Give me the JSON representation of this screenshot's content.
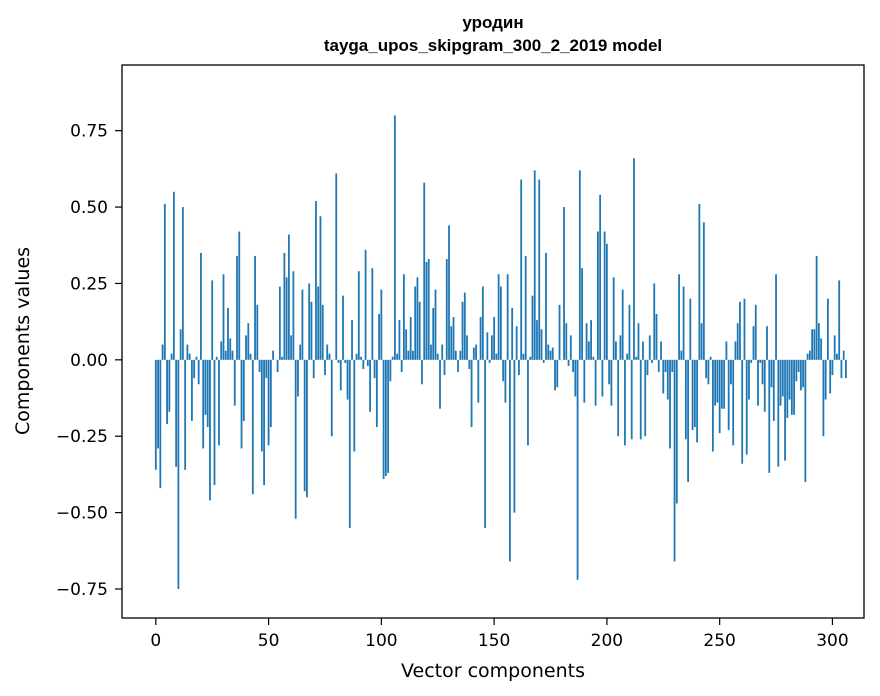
{
  "chart_data": {
    "type": "bar",
    "title": "уродин",
    "subtitle": "tayga_upos_skipgram_300_2_2019 model",
    "xlabel": "Vector components",
    "ylabel": "Components values",
    "xlim": [
      -15,
      314
    ],
    "ylim": [
      -0.845,
      0.965
    ],
    "x_ticks": [
      0,
      50,
      100,
      150,
      200,
      250,
      300
    ],
    "y_ticks": [
      -0.75,
      -0.5,
      -0.25,
      0.0,
      0.25,
      0.5,
      0.75
    ],
    "x_tick_labels": [
      "0",
      "50",
      "100",
      "150",
      "200",
      "250",
      "300"
    ],
    "y_tick_labels": [
      "−0.75",
      "−0.50",
      "−0.25",
      "0.00",
      "0.25",
      "0.50",
      "0.75"
    ],
    "grid": false,
    "bar_color": "#1f77b4",
    "values": [
      -0.36,
      -0.29,
      -0.42,
      0.05,
      0.51,
      -0.21,
      -0.17,
      0.02,
      0.55,
      -0.35,
      -0.75,
      0.1,
      0.5,
      -0.36,
      0.05,
      0.02,
      -0.2,
      -0.06,
      0.01,
      -0.08,
      0.35,
      -0.29,
      -0.18,
      -0.22,
      -0.46,
      0.26,
      -0.41,
      0.01,
      -0.28,
      0.06,
      0.28,
      0.03,
      0.17,
      0.07,
      0.03,
      -0.15,
      0.34,
      0.42,
      -0.29,
      -0.2,
      0.08,
      0.12,
      0.02,
      -0.44,
      0.34,
      0.18,
      -0.04,
      -0.3,
      -0.41,
      -0.06,
      -0.28,
      -0.22,
      0.03,
      0.0,
      -0.04,
      0.24,
      0.01,
      0.35,
      0.27,
      0.41,
      0.08,
      0.29,
      -0.52,
      -0.12,
      0.05,
      0.23,
      -0.43,
      -0.45,
      0.25,
      0.19,
      -0.06,
      0.52,
      0.24,
      0.47,
      0.18,
      -0.05,
      0.05,
      0.02,
      -0.25,
      0.0,
      0.61,
      -0.01,
      -0.1,
      0.21,
      -0.01,
      -0.13,
      -0.55,
      0.13,
      -0.3,
      0.02,
      0.29,
      0.01,
      -0.03,
      0.36,
      -0.02,
      -0.17,
      0.3,
      -0.06,
      -0.22,
      0.15,
      0.23,
      -0.39,
      -0.38,
      -0.37,
      -0.07,
      0.01,
      0.8,
      0.02,
      0.13,
      -0.04,
      0.28,
      0.1,
      0.03,
      0.14,
      0.03,
      0.24,
      0.27,
      0.19,
      -0.08,
      0.58,
      0.32,
      0.33,
      0.05,
      0.17,
      0.23,
      0.02,
      -0.16,
      0.05,
      -0.05,
      0.33,
      0.44,
      0.11,
      0.14,
      0.03,
      -0.04,
      0.03,
      0.19,
      0.22,
      0.08,
      -0.03,
      -0.22,
      0.04,
      0.05,
      -0.14,
      0.14,
      0.24,
      -0.55,
      0.09,
      -0.01,
      0.08,
      0.14,
      0.02,
      0.28,
      0.24,
      -0.07,
      -0.14,
      0.28,
      -0.66,
      0.17,
      -0.5,
      0.11,
      -0.05,
      0.59,
      0.02,
      0.34,
      -0.28,
      0.01,
      0.21,
      0.62,
      0.13,
      0.59,
      0.1,
      -0.01,
      0.35,
      0.05,
      0.03,
      0.04,
      -0.1,
      -0.09,
      0.18,
      0.0,
      0.5,
      0.12,
      -0.02,
      0.08,
      -0.04,
      -0.12,
      -0.72,
      0.62,
      0.3,
      -0.14,
      0.12,
      0.06,
      0.13,
      0.01,
      -0.15,
      0.42,
      0.54,
      -0.12,
      0.42,
      0.38,
      -0.08,
      -0.15,
      0.27,
      0.06,
      -0.25,
      0.08,
      0.23,
      -0.28,
      0.02,
      0.18,
      -0.26,
      0.66,
      0.01,
      0.12,
      -0.26,
      0.06,
      -0.25,
      -0.05,
      0.08,
      -0.01,
      0.25,
      0.15,
      -0.04,
      0.06,
      -0.11,
      -0.04,
      -0.13,
      -0.29,
      -0.04,
      -0.66,
      -0.47,
      0.28,
      0.03,
      0.24,
      -0.26,
      -0.4,
      0.2,
      -0.23,
      -0.22,
      -0.27,
      0.51,
      0.12,
      0.45,
      -0.06,
      -0.08,
      0.01,
      -0.3,
      -0.15,
      -0.14,
      -0.24,
      -0.16,
      -0.16,
      0.06,
      -0.23,
      -0.08,
      -0.28,
      0.06,
      0.12,
      0.19,
      -0.34,
      0.2,
      -0.31,
      -0.13,
      -0.01,
      0.11,
      0.18,
      -0.15,
      -0.01,
      -0.08,
      -0.17,
      0.11,
      -0.37,
      -0.09,
      -0.2,
      0.28,
      -0.35,
      -0.15,
      -0.12,
      -0.33,
      -0.19,
      -0.13,
      -0.18,
      -0.18,
      -0.07,
      -0.04,
      -0.1,
      -0.09,
      -0.4,
      0.02,
      0.03,
      0.1,
      0.1,
      0.34,
      0.12,
      0.07,
      -0.25,
      -0.13,
      0.2,
      -0.11,
      -0.05,
      0.08,
      0.02,
      0.26,
      -0.06,
      0.03,
      -0.06
    ]
  }
}
